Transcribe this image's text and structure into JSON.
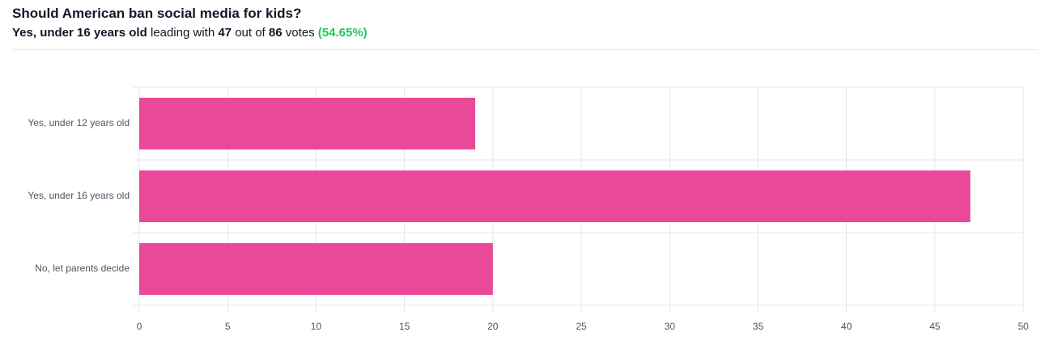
{
  "header": {
    "title": "Should American ban social media for kids?",
    "leader": "Yes, under 16 years old",
    "leading_text": "leading with",
    "leader_votes": 47,
    "out_of_text": "out of",
    "total_votes": 86,
    "votes_text": "votes",
    "leader_share": {
      "value": 54.65,
      "label": "(54.65%)"
    }
  },
  "chart_data": {
    "type": "bar",
    "orientation": "horizontal",
    "categories": [
      "Yes, under 12 years old",
      "Yes, under 16 years old",
      "No, let parents decide"
    ],
    "values": [
      19,
      47,
      20
    ],
    "color": "#ea4899",
    "xlim": [
      0,
      50
    ],
    "xticks": [
      0,
      5,
      10,
      15,
      20,
      25,
      30,
      35,
      40,
      45,
      50
    ],
    "grid": true
  }
}
